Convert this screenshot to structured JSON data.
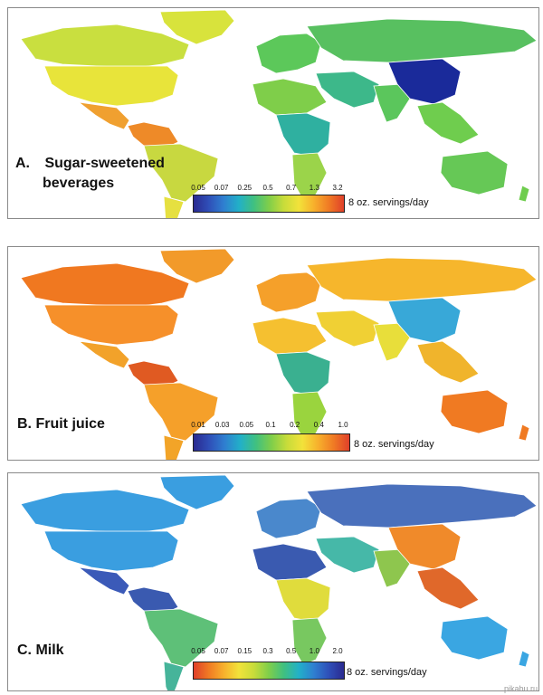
{
  "panels": [
    {
      "id": "a",
      "label_line1": "A.",
      "label_line2": "Sugar-sweetened",
      "label_line3": "beverages",
      "ticks": [
        "0.05",
        "0.07",
        "0.25",
        "0.5",
        "0.7",
        "1.3",
        "3.2"
      ],
      "unit": "8 oz. servings/day",
      "scale": "blue-to-red",
      "colors": {
        "americas_n": "#e8e43a",
        "canada": "#c9df3f",
        "greenland": "#d8e33c",
        "mexico": "#f0a030",
        "ca_sa_north": "#ee8a28",
        "south_am": "#c8d840",
        "south_am_s": "#e6e040",
        "europe": "#5cc85a",
        "russia": "#58c060",
        "middle_east": "#3db88a",
        "africa_n": "#7fce4a",
        "africa_mid": "#2fb0a0",
        "africa_s": "#9bd44a",
        "india": "#5bc65c",
        "china": "#1a2a9a",
        "se_asia": "#6fcd4e",
        "australia": "#66c856",
        "nz": "#6fcd4e"
      }
    },
    {
      "id": "b",
      "label_line1": "B. Fruit juice",
      "ticks": [
        "0.01",
        "0.03",
        "0.05",
        "0.1",
        "0.2",
        "0.4",
        "1.0"
      ],
      "unit": "8 oz. servings/day",
      "scale": "blue-to-red",
      "colors": {
        "americas_n": "#f6902a",
        "canada": "#f07820",
        "greenland": "#f29a2a",
        "mexico": "#f2a22a",
        "ca_sa_north": "#e05a22",
        "south_am": "#f5a02a",
        "south_am_s": "#f2a428",
        "europe": "#f5a02a",
        "russia": "#f6b62c",
        "middle_east": "#f0d034",
        "africa_n": "#f5c030",
        "africa_mid": "#3ab090",
        "africa_s": "#9ad43e",
        "india": "#e8de3a",
        "china": "#38a8d8",
        "se_asia": "#f0b42c",
        "australia": "#f07a22",
        "nz": "#f07a22"
      }
    },
    {
      "id": "c",
      "label_line1": "C. Milk",
      "ticks": [
        "0.05",
        "0.07",
        "0.15",
        "0.3",
        "0.5",
        "1.0",
        "2.0"
      ],
      "unit": "8 oz. servings/day",
      "scale": "red-to-blue",
      "colors": {
        "americas_n": "#3a9ee0",
        "canada": "#3a9ee0",
        "greenland": "#3a9ee0",
        "mexico": "#3b5ab8",
        "ca_sa_north": "#3a5ab0",
        "south_am": "#5ec078",
        "south_am_s": "#46b49a",
        "europe": "#4a88cc",
        "russia": "#4a70bc",
        "middle_east": "#46b8a8",
        "africa_n": "#3a5ab0",
        "africa_mid": "#e0dc3c",
        "africa_s": "#78c860",
        "india": "#8ec64e",
        "china": "#f08a2a",
        "se_asia": "#e0682a",
        "australia": "#3aa6e2",
        "nz": "#3aa6e2"
      }
    }
  ],
  "watermark": "pikabu.ru"
}
